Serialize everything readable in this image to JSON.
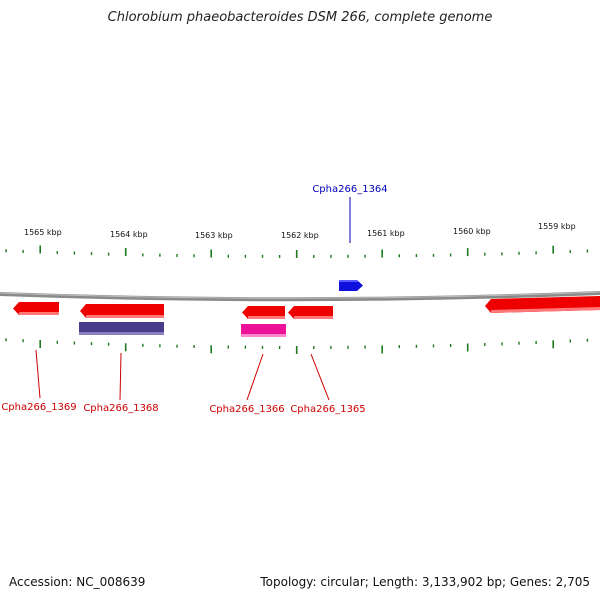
{
  "header": {
    "title": "Chlorobium phaeobacteroides DSM 266, complete genome"
  },
  "footer": {
    "accession_text": "Accession: NC_008639",
    "summary_text": "Topology: circular; Length: 3,133,902 bp; Genes: 2,705"
  },
  "colors": {
    "backbone": "#8a8a8a",
    "tick": "#1f7a1f",
    "gene_red": "#ee0000",
    "gene_blue": "#1010dd",
    "gene_purple": "#4a3a8a",
    "gene_pink": "#ee1199",
    "label_red": "#cc0000",
    "label_blue": "#0000bb"
  },
  "scale": {
    "labels": [
      "1565 kbp",
      "1564 kbp",
      "1563 kbp",
      "1562 kbp",
      "1561 kbp",
      "1560 kbp",
      "1559 kbp"
    ]
  },
  "genes": [
    {
      "label": "Cpha266_1369",
      "color": "gene_red"
    },
    {
      "label": "Cpha266_1368",
      "color": "gene_red"
    },
    {
      "label": "Cpha266_1366",
      "color": "gene_red"
    },
    {
      "label": "Cpha266_1365",
      "color": "gene_red"
    },
    {
      "label": "Cpha266_1364",
      "color": "gene_blue"
    }
  ]
}
